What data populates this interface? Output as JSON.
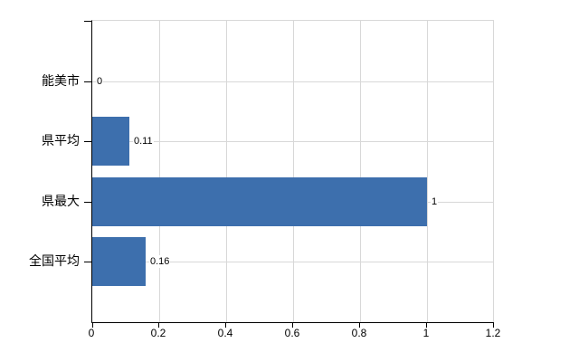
{
  "chart_data": {
    "type": "bar",
    "orientation": "horizontal",
    "title": "",
    "categories": [
      "能美市",
      "県平均",
      "県最大",
      "全国平均"
    ],
    "values": [
      0,
      0.11,
      1,
      0.16
    ],
    "value_labels": [
      "0",
      "0.11",
      "1",
      "0.16"
    ],
    "x_tick_labels": [
      "0",
      "0.2",
      "0.4",
      "0.6",
      "0.8",
      "1",
      "1.2"
    ],
    "x_tick_values": [
      0,
      0.2,
      0.4,
      0.6,
      0.8,
      1,
      1.2
    ],
    "xlim": [
      0,
      1.2
    ],
    "grid": true,
    "legend": false,
    "bar_color": "#3d6fad",
    "axis_color": "#000000",
    "grid_color": "#d8d8d8",
    "label_color": "#000000",
    "background_color": "#ffffff"
  }
}
